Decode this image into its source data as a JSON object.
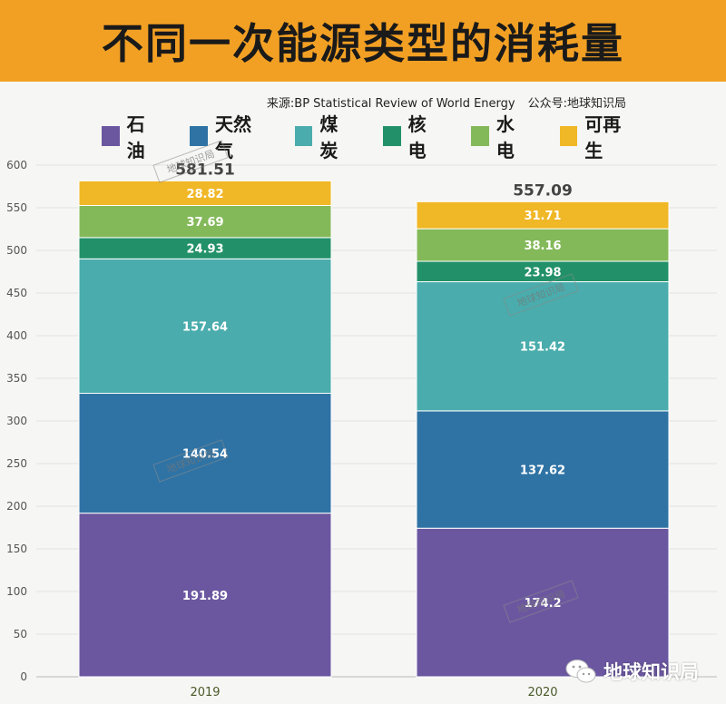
{
  "header": {
    "title": "不同一次能源类型的消耗量"
  },
  "source": {
    "text": "来源:BP Statistical Review of World Energy",
    "account": "公众号:地球知识局"
  },
  "legend": [
    {
      "label": "石油",
      "color": "#6b57a0"
    },
    {
      "label": "天然气",
      "color": "#2f73a5"
    },
    {
      "label": "煤炭",
      "color": "#4aacac"
    },
    {
      "label": "核电",
      "color": "#22916a"
    },
    {
      "label": "水电",
      "color": "#84b95a"
    },
    {
      "label": "可再生",
      "color": "#f0b726"
    }
  ],
  "watermark": {
    "text": "地球知识局",
    "stamp": "地球知识局"
  },
  "chart_data": {
    "type": "bar",
    "stacked": true,
    "categories": [
      "2019",
      "2020"
    ],
    "series": [
      {
        "name": "石油",
        "values": [
          191.89,
          174.2
        ]
      },
      {
        "name": "天然气",
        "values": [
          140.54,
          137.62
        ]
      },
      {
        "name": "煤炭",
        "values": [
          157.64,
          151.42
        ]
      },
      {
        "name": "核电",
        "values": [
          24.93,
          23.98
        ]
      },
      {
        "name": "水电",
        "values": [
          37.69,
          38.16
        ]
      },
      {
        "name": "可再生",
        "values": [
          28.82,
          31.71
        ]
      }
    ],
    "totals": [
      "581.51",
      "557.09"
    ],
    "value_labels": [
      [
        "191.89",
        "140.54",
        "157.64",
        "24.93",
        "37.69",
        "28.82"
      ],
      [
        "174.2",
        "137.62",
        "151.42",
        "23.98",
        "38.16",
        "31.71"
      ]
    ],
    "yticks": [
      "0",
      "50",
      "100",
      "150",
      "200",
      "250",
      "300",
      "350",
      "400",
      "450",
      "500",
      "550",
      "600"
    ],
    "ylim": [
      0,
      600
    ],
    "grid": true,
    "legend_position": "top"
  }
}
